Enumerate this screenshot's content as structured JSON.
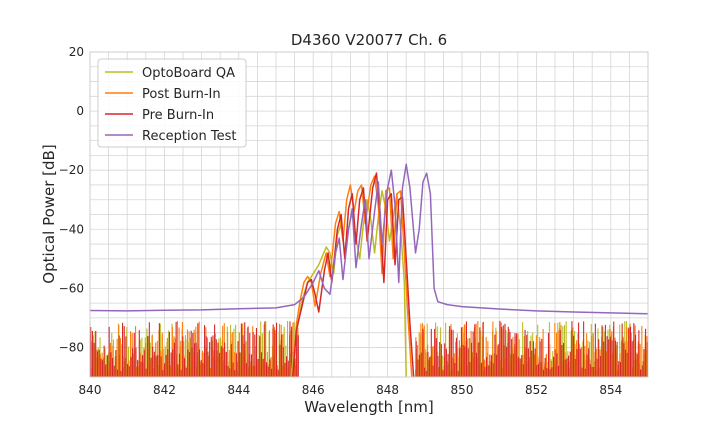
{
  "chart_data": {
    "type": "line",
    "title": "D4360 V20077 Ch. 6",
    "xlabel": "Wavelength [nm]",
    "ylabel": "Optical Power [dB]",
    "xlim": [
      840,
      855
    ],
    "ylim": [
      -90,
      20
    ],
    "xticks": [
      840,
      842,
      844,
      846,
      848,
      850,
      852,
      854
    ],
    "yticks": [
      20,
      0,
      -20,
      -40,
      -60,
      -80
    ],
    "xtick_labels": [
      "840",
      "842",
      "844",
      "846",
      "848",
      "850",
      "852",
      "854"
    ],
    "ytick_labels": [
      "20",
      "0",
      "−20",
      "−40",
      "−60",
      "−80"
    ],
    "grid": true,
    "legend_position": "top-left",
    "noise_floor_note": "Series other than Reception Test show noise floor fluctuating between about -90 and -70 dB outside 845.6-849.0 nm",
    "series": [
      {
        "name": "OptoBoard QA",
        "color": "#bcbd22",
        "points": [
          [
            845.4,
            -90
          ],
          [
            845.55,
            -75
          ],
          [
            845.7,
            -64
          ],
          [
            845.85,
            -58
          ],
          [
            846.0,
            -55
          ],
          [
            846.15,
            -52
          ],
          [
            846.25,
            -49
          ],
          [
            846.35,
            -46
          ],
          [
            846.45,
            -48
          ],
          [
            846.55,
            -55
          ],
          [
            846.65,
            -42
          ],
          [
            846.75,
            -38
          ],
          [
            846.85,
            -48
          ],
          [
            846.95,
            -40
          ],
          [
            847.05,
            -34
          ],
          [
            847.15,
            -43
          ],
          [
            847.25,
            -50
          ],
          [
            847.35,
            -38
          ],
          [
            847.45,
            -30
          ],
          [
            847.55,
            -37
          ],
          [
            847.65,
            -48
          ],
          [
            847.75,
            -36
          ],
          [
            847.85,
            -27
          ],
          [
            847.95,
            -33
          ],
          [
            848.05,
            -44
          ],
          [
            848.15,
            -36
          ],
          [
            848.25,
            -28
          ],
          [
            848.35,
            -40
          ],
          [
            848.45,
            -58
          ],
          [
            848.5,
            -90
          ]
        ]
      },
      {
        "name": "Post Burn-In",
        "color": "#ff7f0e",
        "points": [
          [
            845.45,
            -90
          ],
          [
            845.55,
            -72
          ],
          [
            845.65,
            -64
          ],
          [
            845.75,
            -58
          ],
          [
            845.85,
            -56
          ],
          [
            845.95,
            -58
          ],
          [
            846.05,
            -66
          ],
          [
            846.2,
            -55
          ],
          [
            846.35,
            -48
          ],
          [
            846.45,
            -56
          ],
          [
            846.6,
            -38
          ],
          [
            846.7,
            -34
          ],
          [
            846.8,
            -44
          ],
          [
            846.9,
            -30
          ],
          [
            847.0,
            -25
          ],
          [
            847.1,
            -34
          ],
          [
            847.2,
            -27
          ],
          [
            847.3,
            -25
          ],
          [
            847.4,
            -38
          ],
          [
            847.55,
            -25
          ],
          [
            847.65,
            -22
          ],
          [
            847.75,
            -32
          ],
          [
            847.85,
            -55
          ],
          [
            847.95,
            -27
          ],
          [
            848.05,
            -26
          ],
          [
            848.15,
            -50
          ],
          [
            848.25,
            -28
          ],
          [
            848.35,
            -27
          ],
          [
            848.45,
            -48
          ],
          [
            848.55,
            -70
          ],
          [
            848.65,
            -90
          ]
        ]
      },
      {
        "name": "Pre Burn-In",
        "color": "#d62728",
        "points": [
          [
            845.45,
            -90
          ],
          [
            845.55,
            -74
          ],
          [
            845.7,
            -66
          ],
          [
            845.85,
            -58
          ],
          [
            845.95,
            -57
          ],
          [
            846.05,
            -62
          ],
          [
            846.15,
            -68
          ],
          [
            846.3,
            -54
          ],
          [
            846.4,
            -48
          ],
          [
            846.5,
            -58
          ],
          [
            846.65,
            -40
          ],
          [
            846.75,
            -35
          ],
          [
            846.85,
            -50
          ],
          [
            846.95,
            -33
          ],
          [
            847.05,
            -28
          ],
          [
            847.15,
            -45
          ],
          [
            847.25,
            -30
          ],
          [
            847.35,
            -26
          ],
          [
            847.45,
            -44
          ],
          [
            847.6,
            -26
          ],
          [
            847.7,
            -21
          ],
          [
            847.8,
            -36
          ],
          [
            847.9,
            -58
          ],
          [
            848.0,
            -30
          ],
          [
            848.1,
            -28
          ],
          [
            848.2,
            -52
          ],
          [
            848.3,
            -30
          ],
          [
            848.4,
            -29
          ],
          [
            848.5,
            -50
          ],
          [
            848.6,
            -72
          ],
          [
            848.7,
            -90
          ]
        ]
      },
      {
        "name": "Reception Test",
        "color": "#9467bd",
        "points": [
          [
            840.0,
            -67.5
          ],
          [
            841.0,
            -67.6
          ],
          [
            842.0,
            -67.4
          ],
          [
            843.0,
            -67.3
          ],
          [
            844.0,
            -66.9
          ],
          [
            845.0,
            -66.6
          ],
          [
            845.5,
            -65.5
          ],
          [
            845.75,
            -63.0
          ],
          [
            846.0,
            -58
          ],
          [
            846.15,
            -54
          ],
          [
            846.3,
            -60
          ],
          [
            846.45,
            -62
          ],
          [
            846.6,
            -48
          ],
          [
            846.7,
            -43
          ],
          [
            846.8,
            -57
          ],
          [
            846.95,
            -40
          ],
          [
            847.05,
            -33
          ],
          [
            847.15,
            -53
          ],
          [
            847.3,
            -38
          ],
          [
            847.4,
            -30
          ],
          [
            847.5,
            -50
          ],
          [
            847.65,
            -34
          ],
          [
            847.75,
            -24
          ],
          [
            847.85,
            -45
          ],
          [
            848.0,
            -26
          ],
          [
            848.1,
            -20
          ],
          [
            848.2,
            -32
          ],
          [
            848.3,
            -58
          ],
          [
            848.4,
            -26
          ],
          [
            848.5,
            -18
          ],
          [
            848.6,
            -26
          ],
          [
            848.75,
            -48
          ],
          [
            848.85,
            -40
          ],
          [
            848.95,
            -24
          ],
          [
            849.05,
            -21
          ],
          [
            849.15,
            -28
          ],
          [
            849.25,
            -60
          ],
          [
            849.35,
            -64.5
          ],
          [
            849.6,
            -65.5
          ],
          [
            850.0,
            -66.2
          ],
          [
            851.0,
            -67.0
          ],
          [
            852.0,
            -67.6
          ],
          [
            853.0,
            -68.0
          ],
          [
            854.0,
            -68.3
          ],
          [
            855.0,
            -68.6
          ]
        ]
      }
    ]
  }
}
